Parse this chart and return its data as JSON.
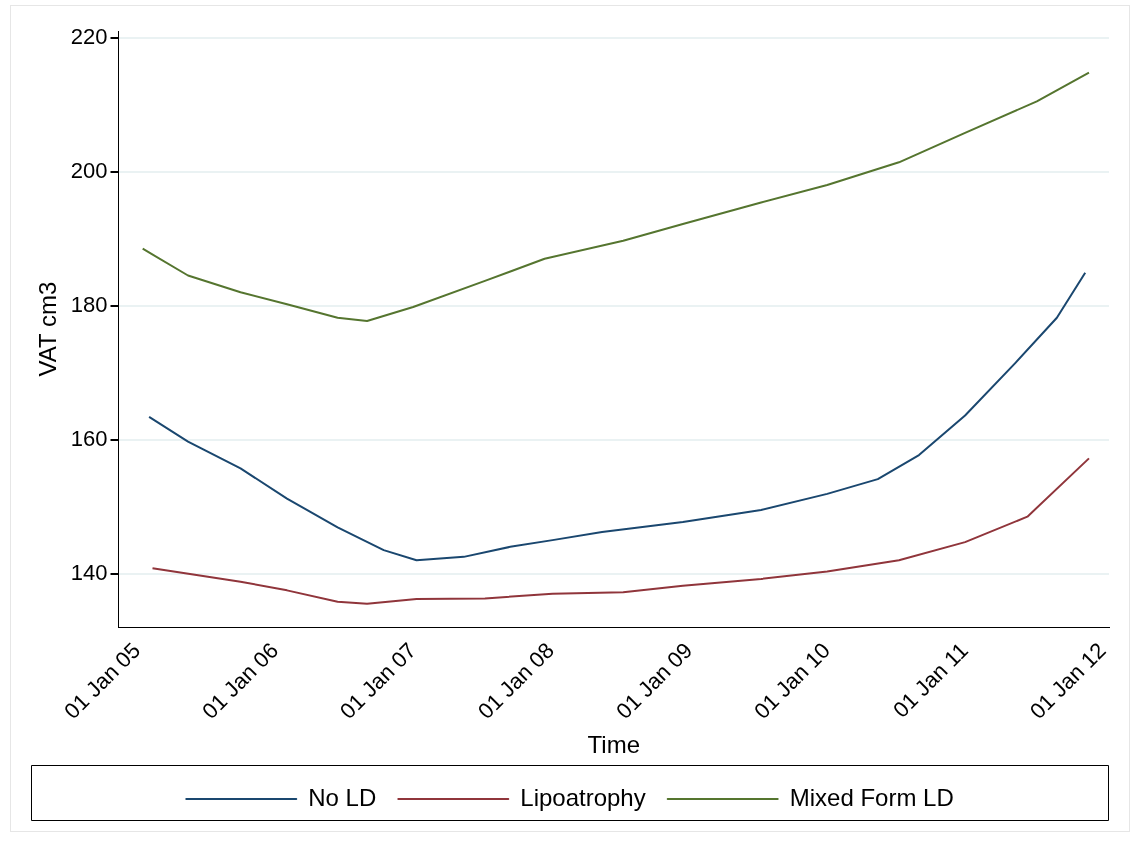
{
  "chart_data": {
    "type": "line",
    "xlabel": "Time",
    "ylabel": "VAT cm3",
    "xlim": [
      "2004-11-12",
      "2012-01-17"
    ],
    "ylim": [
      132,
      221
    ],
    "xticks": [
      {
        "value": "2005-01-01",
        "label": "01 Jan 05"
      },
      {
        "value": "2006-01-01",
        "label": "01 Jan 06"
      },
      {
        "value": "2007-01-01",
        "label": "01 Jan 07"
      },
      {
        "value": "2008-01-01",
        "label": "01 Jan 08"
      },
      {
        "value": "2009-01-01",
        "label": "01 Jan 09"
      },
      {
        "value": "2010-01-01",
        "label": "01 Jan 10"
      },
      {
        "value": "2011-01-01",
        "label": "01 Jan 11"
      },
      {
        "value": "2012-01-01",
        "label": "01 Jan 12"
      }
    ],
    "yticks": [
      140,
      160,
      180,
      200,
      220
    ],
    "grid": "y",
    "legend": "bottom",
    "marker": "none",
    "line_style": "solid",
    "series": [
      {
        "name": "No LD",
        "color": "#1a476f",
        "x": [
          "2005-02-01",
          "2005-05-15",
          "2005-10-01",
          "2006-02-01",
          "2006-06-15",
          "2006-10-15",
          "2007-01-10",
          "2007-05-15",
          "2007-09-15",
          "2008-01-05",
          "2008-05-15",
          "2008-12-15",
          "2009-07-10",
          "2010-01-01",
          "2010-05-15",
          "2010-09-01",
          "2011-01-01",
          "2011-05-15",
          "2011-09-01",
          "2011-11-15"
        ],
        "values": [
          163.4,
          159.7,
          155.7,
          151.2,
          146.9,
          143.5,
          142,
          142.5,
          144,
          145,
          146.2,
          147.7,
          149.5,
          151.9,
          154.1,
          157.7,
          163.6,
          171.5,
          178.2,
          184.9
        ]
      },
      {
        "name": "Lipoatrophy",
        "color": "#90353b",
        "x": [
          "2005-02-10",
          "2005-10-01",
          "2006-02-01",
          "2006-06-15",
          "2006-09-01",
          "2007-01-10",
          "2007-07-10",
          "2008-01-05",
          "2008-07-10",
          "2008-12-15",
          "2009-07-10",
          "2010-01-01",
          "2010-07-10",
          "2011-01-01",
          "2011-06-15",
          "2011-11-25"
        ],
        "values": [
          140.8,
          138.8,
          137.5,
          135.8,
          135.5,
          136.2,
          136.3,
          137,
          137.2,
          138.2,
          139.2,
          140.3,
          142,
          144.7,
          148.5,
          157.2
        ]
      },
      {
        "name": "Mixed Form LD",
        "color": "#55752f",
        "x": [
          "2005-01-15",
          "2005-05-15",
          "2005-10-01",
          "2006-02-01",
          "2006-06-15",
          "2006-09-01",
          "2007-01-01",
          "2007-07-10",
          "2007-12-15",
          "2008-07-10",
          "2008-12-15",
          "2009-07-10",
          "2010-01-01",
          "2010-07-10",
          "2011-01-01",
          "2011-07-10",
          "2011-11-25"
        ],
        "values": [
          188.5,
          184.5,
          182,
          180.2,
          178.2,
          177.7,
          179.8,
          183.7,
          187,
          189.7,
          192.2,
          195.4,
          198,
          201.4,
          205.8,
          210.5,
          214.8
        ]
      }
    ]
  }
}
